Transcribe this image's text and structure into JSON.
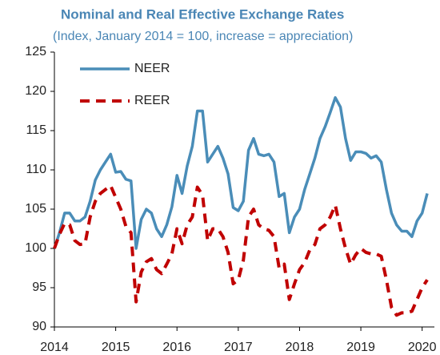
{
  "chart_data": {
    "type": "line",
    "title": "Nominal and Real Effective Exchange Rates",
    "subtitle": "(Index, January 2014 = 100, increase = appreciation)",
    "x": [
      2014,
      2014.083,
      2014.167,
      2014.25,
      2014.333,
      2014.417,
      2014.5,
      2014.583,
      2014.667,
      2014.75,
      2014.833,
      2014.917,
      2015,
      2015.083,
      2015.167,
      2015.25,
      2015.333,
      2015.417,
      2015.5,
      2015.583,
      2015.667,
      2015.75,
      2015.833,
      2015.917,
      2016,
      2016.083,
      2016.167,
      2016.25,
      2016.333,
      2016.417,
      2016.5,
      2016.583,
      2016.667,
      2016.75,
      2016.833,
      2016.917,
      2017,
      2017.083,
      2017.167,
      2017.25,
      2017.333,
      2017.417,
      2017.5,
      2017.583,
      2017.667,
      2017.75,
      2017.833,
      2017.917,
      2018,
      2018.083,
      2018.167,
      2018.25,
      2018.333,
      2018.417,
      2018.5,
      2018.583,
      2018.667,
      2018.75,
      2018.833,
      2018.917,
      2019,
      2019.083,
      2019.167,
      2019.25,
      2019.333,
      2019.417,
      2019.5,
      2019.583,
      2019.667,
      2019.75,
      2019.833,
      2019.917,
      2020,
      2020.083
    ],
    "series": [
      {
        "name": "NEER",
        "color": "#4a8db8",
        "dash": false,
        "values": [
          100,
          102,
          104.5,
          104.5,
          103.5,
          103.5,
          104,
          106,
          108.7,
          110,
          111,
          112,
          109.7,
          109.8,
          108.8,
          108.6,
          100,
          103.7,
          105,
          104.5,
          102.5,
          101.5,
          103,
          105.3,
          109.3,
          107,
          110.5,
          113,
          117.5,
          117.5,
          111,
          112,
          113,
          111.5,
          109.5,
          105.2,
          104.8,
          106,
          112.5,
          114,
          112,
          111.8,
          112,
          111,
          106.6,
          107,
          102,
          104,
          105,
          107.5,
          109.5,
          111.5,
          114,
          115.5,
          117.3,
          119.2,
          118,
          114,
          111.2,
          112.3,
          112.3,
          112.1,
          111.5,
          111.8,
          111,
          107.5,
          104.5,
          103,
          102.2,
          102.2,
          101.5,
          103.5,
          104.5,
          107
        ]
      },
      {
        "name": "REER",
        "color": "#c00000",
        "dash": true,
        "values": [
          100,
          101.8,
          103.2,
          103,
          101,
          100.5,
          100.6,
          104,
          106,
          107,
          107.5,
          108,
          106.5,
          105,
          102.8,
          102,
          93.2,
          97,
          98.3,
          98.7,
          97.3,
          96.8,
          98,
          99.3,
          102.5,
          100.6,
          103,
          104,
          107.8,
          106.8,
          101,
          102.5,
          102.5,
          101.5,
          99.5,
          95.5,
          96,
          98.5,
          104,
          105,
          103,
          102.5,
          102.3,
          101.5,
          97.5,
          98,
          93.5,
          95.5,
          97.3,
          98.2,
          99.8,
          100.5,
          102.5,
          103,
          104,
          105.5,
          102.5,
          100,
          98,
          99.2,
          100,
          99.5,
          99.3,
          99.3,
          99,
          96,
          92.5,
          91.5,
          91.8,
          91.8,
          92,
          93.5,
          95,
          96
        ]
      }
    ],
    "xlim": [
      2014,
      2020.2
    ],
    "xticks": [
      2014,
      2015,
      2016,
      2017,
      2018,
      2019,
      2020
    ],
    "ylim": [
      90,
      125
    ],
    "yticks": [
      90,
      95,
      100,
      105,
      110,
      115,
      120,
      125
    ],
    "legend": "upper left"
  }
}
